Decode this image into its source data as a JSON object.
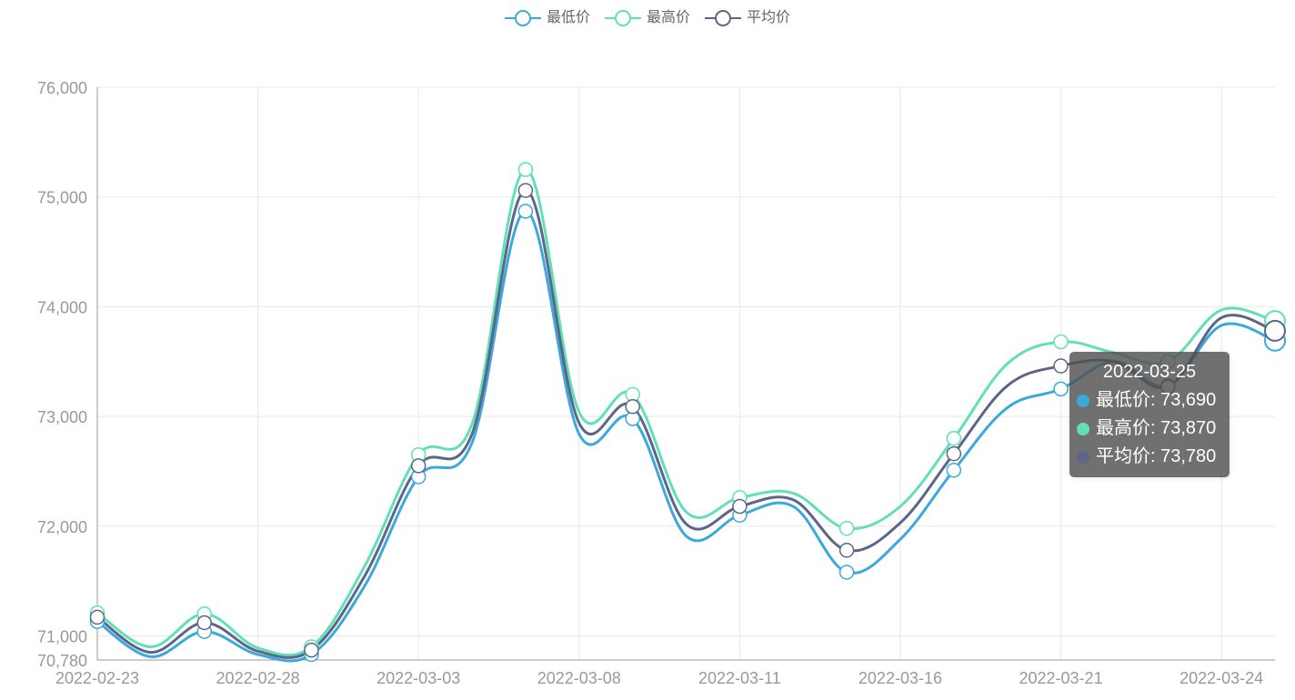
{
  "chart_data": {
    "type": "line",
    "title": "",
    "xlabel": "",
    "ylabel": "",
    "ylim": [
      70780,
      76000
    ],
    "y_ticks": [
      "70,780",
      "71,000",
      "72,000",
      "73,000",
      "74,000",
      "75,000",
      "76,000"
    ],
    "x_tick_labels": [
      "2022-02-23",
      "2022-02-28",
      "2022-03-03",
      "2022-03-08",
      "2022-03-11",
      "2022-03-16",
      "2022-03-21",
      "2022-03-24"
    ],
    "smooth": true,
    "grid": true,
    "legend_position": "top-center",
    "x": [
      "2022-02-23",
      "2022-02-24",
      "2022-02-25",
      "2022-02-28",
      "2022-03-01",
      "2022-03-02",
      "2022-03-03",
      "2022-03-04",
      "2022-03-07",
      "2022-03-08",
      "2022-03-09",
      "2022-03-10",
      "2022-03-11",
      "2022-03-14",
      "2022-03-15",
      "2022-03-16",
      "2022-03-17",
      "2022-03-18",
      "2022-03-21",
      "2022-03-22",
      "2022-03-23",
      "2022-03-24",
      "2022-03-25"
    ],
    "series": [
      {
        "name": "最低价",
        "color": "#3ba9db",
        "values": [
          71130,
          70810,
          71040,
          70830,
          70830,
          71460,
          72450,
          72760,
          74870,
          72840,
          72980,
          71910,
          72100,
          72180,
          71580,
          71880,
          72510,
          73080,
          73250,
          73500,
          73280,
          73830,
          73690
        ]
      },
      {
        "name": "最高价",
        "color": "#62e0b5",
        "values": [
          71210,
          70900,
          71200,
          70890,
          70900,
          71640,
          72650,
          72930,
          75250,
          73040,
          73200,
          72130,
          72260,
          72300,
          71980,
          72180,
          72800,
          73480,
          73680,
          73580,
          73500,
          73970,
          73870
        ]
      },
      {
        "name": "平均价",
        "color": "#5d6588",
        "values": [
          71170,
          70850,
          71120,
          70860,
          70870,
          71550,
          72550,
          72840,
          75060,
          72940,
          73090,
          72020,
          72180,
          72240,
          71780,
          72030,
          72660,
          73280,
          73460,
          73500,
          73270,
          73900,
          73780
        ]
      }
    ]
  },
  "tooltip": {
    "date": "2022-03-25",
    "rows": [
      {
        "text": "最低价: 73,690",
        "color": "#3ba9db"
      },
      {
        "text": "最高价: 73,870",
        "color": "#62e0b5"
      },
      {
        "text": "平均价: 73,780",
        "color": "#5d6588"
      }
    ]
  }
}
